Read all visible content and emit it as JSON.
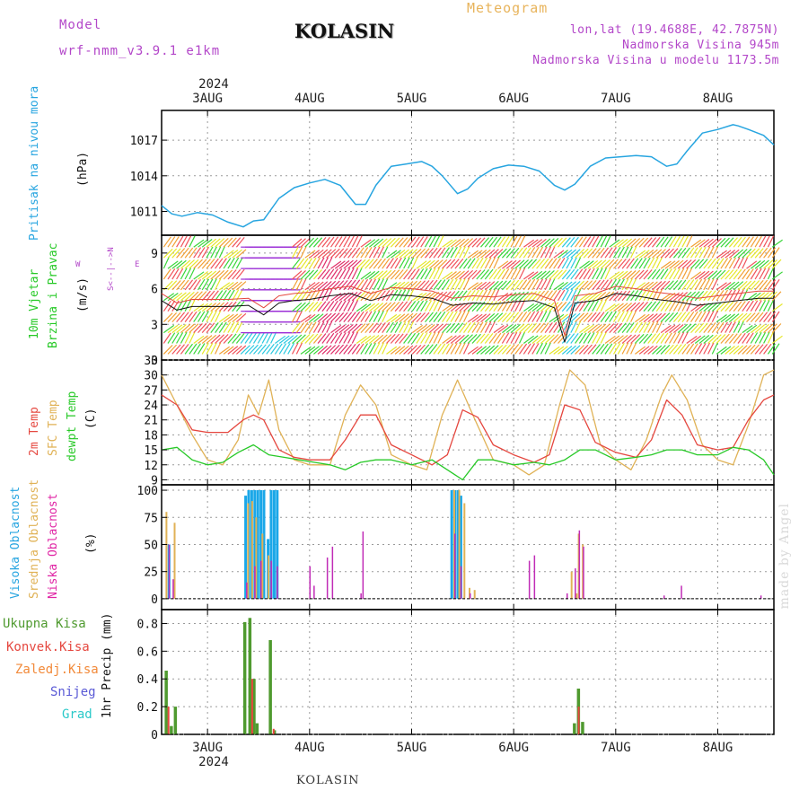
{
  "header": {
    "model_label": "Model",
    "model_name": "wrf-nmm_v3.9.1  e1km",
    "title": "KOLASIN",
    "meteogram_label": "Meteogram",
    "coords": "lon,lat (19.4688E, 42.7875N)",
    "elevation": "Nadmorska Visina 945m",
    "model_elevation": "Nadmorska Visina u modelu 1173.5m"
  },
  "footer": {
    "station": "KOLASIN",
    "watermark": "made by Angel"
  },
  "time_axis": {
    "year": "2024",
    "days": [
      "3AUG",
      "4AUG",
      "5AUG",
      "6AUG",
      "7AUG",
      "8AUG"
    ]
  },
  "panels": {
    "pressure": {
      "label": "Pritisak na nivou mora",
      "unit": "(hPa)",
      "ticks": [
        "1017",
        "1014",
        "1011"
      ]
    },
    "wind": {
      "label1": "10m Vjetar",
      "label2": "Brzina i Pravac",
      "unit": "(m/s)",
      "compass_ns": "S<--|-->N",
      "compass_w": "W",
      "compass_e": "E",
      "ticks": [
        "9",
        "6",
        "3",
        "0"
      ]
    },
    "temp": {
      "label1": "2m Temp",
      "label2": "SFC Temp",
      "label3": "dewpt Temp",
      "unit": "(C)",
      "ticks": [
        "33",
        "30",
        "27",
        "24",
        "21",
        "18",
        "15",
        "12",
        "9"
      ]
    },
    "cloud": {
      "label1": "Visoka Oblacnost",
      "label2": "Srednja Oblacnost",
      "label3": "Niska Oblacnost",
      "unit": "(%)",
      "ticks": [
        "100",
        "75",
        "50",
        "25",
        "0"
      ]
    },
    "precip": {
      "legend": [
        "Ukupna Kisa",
        "Konvek.Kisa",
        "Zaledj.Kisa",
        "Snijeg",
        "Grad"
      ],
      "ylabel": "1hr Precip (mm)",
      "ticks": [
        "0.8",
        "0.6",
        "0.4",
        "0.2",
        "0"
      ]
    }
  },
  "chart_data": {
    "type": "line",
    "x_unit": "day (3 Aug 2024 = day 3)",
    "x_range": [
      2.55,
      8.55
    ],
    "colors": {
      "pressure": "#27a5e0",
      "t2m": "#e5473f",
      "sfc": "#e0b256",
      "dewpt": "#27c927",
      "high_cloud": "#1aa7e8",
      "mid_cloud": "#e0b256",
      "low_cloud": "#c02bb6",
      "total_rain": "#4f9a2f",
      "conv_rain": "#e5473f",
      "freezing_rain": "#f28a3a",
      "snow": "#5a5ad6",
      "hail": "#2bc9c9",
      "label_blue": "#27a5e0",
      "label_green": "#27c927",
      "label_red": "#e5473f",
      "label_orange": "#e0b256",
      "label_magenta": "#e026a5",
      "label_purple": "#b347c9"
    },
    "pressure_hpa": {
      "ylim": [
        1009,
        1019.5
      ],
      "x": [
        2.55,
        2.65,
        2.75,
        2.9,
        3.05,
        3.2,
        3.35,
        3.45,
        3.55,
        3.7,
        3.85,
        4.0,
        4.15,
        4.3,
        4.45,
        4.55,
        4.65,
        4.8,
        4.95,
        5.1,
        5.2,
        5.3,
        5.45,
        5.55,
        5.65,
        5.8,
        5.95,
        6.1,
        6.25,
        6.4,
        6.5,
        6.6,
        6.75,
        6.9,
        7.05,
        7.2,
        7.35,
        7.5,
        7.6,
        7.7,
        7.85,
        8.0,
        8.15,
        8.2,
        8.3,
        8.45,
        8.55
      ],
      "y": [
        1011.5,
        1010.8,
        1010.6,
        1010.9,
        1010.7,
        1010.1,
        1009.7,
        1010.2,
        1010.3,
        1012.1,
        1013.0,
        1013.4,
        1013.7,
        1013.2,
        1011.6,
        1011.6,
        1013.2,
        1014.8,
        1015.0,
        1015.2,
        1014.8,
        1014.0,
        1012.5,
        1012.9,
        1013.8,
        1014.6,
        1014.9,
        1014.8,
        1014.4,
        1013.2,
        1012.8,
        1013.3,
        1014.8,
        1015.5,
        1015.6,
        1015.7,
        1015.6,
        1014.8,
        1015.0,
        1016.1,
        1017.6,
        1017.9,
        1018.3,
        1018.2,
        1017.9,
        1017.4,
        1016.6
      ]
    },
    "wind_speed_ms": {
      "ylim": [
        0,
        10.5
      ],
      "x": [
        2.55,
        2.7,
        2.85,
        3.0,
        3.2,
        3.4,
        3.55,
        3.7,
        3.85,
        4.0,
        4.2,
        4.4,
        4.6,
        4.8,
        5.0,
        5.2,
        5.4,
        5.6,
        5.8,
        6.0,
        6.2,
        6.4,
        6.5,
        6.6,
        6.8,
        7.0,
        7.2,
        7.4,
        7.6,
        7.8,
        8.0,
        8.2,
        8.4,
        8.55
      ],
      "y": [
        5.0,
        4.2,
        4.5,
        4.5,
        4.5,
        4.6,
        3.8,
        4.8,
        5.0,
        5.1,
        5.4,
        5.6,
        5.0,
        5.5,
        5.4,
        5.2,
        4.6,
        4.8,
        4.7,
        4.9,
        5.0,
        4.4,
        1.5,
        4.8,
        5.0,
        5.6,
        5.4,
        5.1,
        4.9,
        4.6,
        4.8,
        5.0,
        5.2,
        5.2
      ]
    },
    "temp_2m_c": {
      "ylim": [
        8,
        33
      ],
      "x": [
        2.55,
        2.7,
        2.85,
        3.0,
        3.2,
        3.35,
        3.45,
        3.55,
        3.7,
        3.85,
        4.0,
        4.2,
        4.35,
        4.5,
        4.65,
        4.8,
        5.0,
        5.2,
        5.35,
        5.5,
        5.65,
        5.8,
        6.0,
        6.2,
        6.35,
        6.5,
        6.65,
        6.8,
        7.0,
        7.2,
        7.35,
        7.5,
        7.65,
        7.8,
        8.0,
        8.15,
        8.3,
        8.45,
        8.55
      ],
      "y": [
        26,
        24,
        19,
        18.5,
        18.5,
        21,
        22,
        21,
        15,
        13.5,
        13,
        13,
        17,
        22,
        22,
        16,
        14,
        12,
        14,
        23,
        21.5,
        16,
        14,
        12.5,
        14,
        24,
        23,
        16.5,
        14.5,
        13.5,
        17,
        25,
        22,
        16,
        15,
        15.5,
        21,
        25,
        26
      ]
    },
    "sfc_temp_c": {
      "x": [
        2.55,
        2.7,
        2.85,
        3.0,
        3.15,
        3.3,
        3.4,
        3.5,
        3.6,
        3.7,
        3.85,
        4.0,
        4.2,
        4.35,
        4.5,
        4.65,
        4.8,
        5.0,
        5.15,
        5.3,
        5.45,
        5.6,
        5.8,
        6.0,
        6.15,
        6.3,
        6.45,
        6.55,
        6.7,
        6.85,
        7.0,
        7.15,
        7.3,
        7.45,
        7.55,
        7.7,
        7.85,
        8.0,
        8.15,
        8.3,
        8.45,
        8.55
      ],
      "y": [
        30,
        24,
        18,
        13,
        12,
        17,
        26,
        22,
        29,
        19,
        13,
        12,
        12,
        22,
        28,
        24,
        14,
        12,
        11,
        22,
        29,
        22,
        13,
        12,
        10,
        12,
        24,
        31,
        28,
        16,
        13,
        11,
        17,
        26,
        30,
        25,
        16,
        13,
        12,
        20,
        30,
        31
      ]
    },
    "dewpt_c": {
      "x": [
        2.55,
        2.7,
        2.85,
        3.0,
        3.15,
        3.3,
        3.45,
        3.6,
        3.75,
        3.9,
        4.05,
        4.2,
        4.35,
        4.5,
        4.65,
        4.8,
        5.0,
        5.2,
        5.35,
        5.5,
        5.65,
        5.8,
        6.0,
        6.2,
        6.35,
        6.5,
        6.65,
        6.8,
        7.0,
        7.2,
        7.35,
        7.5,
        7.65,
        7.8,
        8.0,
        8.15,
        8.3,
        8.45,
        8.55
      ],
      "y": [
        15,
        15.5,
        13,
        12,
        12.5,
        14.5,
        16,
        14,
        13.5,
        13,
        12.5,
        12,
        11,
        12.5,
        13,
        13,
        12,
        13,
        11,
        9,
        13,
        13,
        12,
        12.5,
        12,
        13,
        15,
        15,
        13,
        13.5,
        14,
        15,
        15,
        14,
        14,
        15.5,
        15,
        13,
        10
      ]
    },
    "cloud_pct": {
      "ylim": [
        0,
        100
      ],
      "high": [
        [
          2.61,
          50
        ],
        [
          3.36,
          95
        ],
        [
          3.39,
          100
        ],
        [
          3.42,
          100
        ],
        [
          3.45,
          100
        ],
        [
          3.48,
          100
        ],
        [
          3.51,
          100
        ],
        [
          3.54,
          100
        ],
        [
          3.58,
          55
        ],
        [
          3.61,
          100
        ],
        [
          3.64,
          100
        ],
        [
          3.67,
          100
        ],
        [
          5.38,
          100
        ],
        [
          5.41,
          100
        ],
        [
          5.44,
          100
        ],
        [
          5.47,
          95
        ]
      ],
      "mid": [
        [
          2.58,
          80
        ],
        [
          2.66,
          70
        ],
        [
          3.38,
          88
        ],
        [
          3.42,
          90
        ],
        [
          3.46,
          75
        ],
        [
          3.52,
          60
        ],
        [
          3.58,
          40
        ],
        [
          5.4,
          100
        ],
        [
          5.45,
          100
        ],
        [
          5.5,
          88
        ],
        [
          5.55,
          10
        ],
        [
          5.6,
          8
        ],
        [
          6.55,
          25
        ],
        [
          6.62,
          60
        ],
        [
          6.66,
          50
        ],
        [
          6.6,
          5
        ]
      ],
      "low": [
        [
          2.6,
          50
        ],
        [
          2.64,
          18
        ],
        [
          3.36,
          15
        ],
        [
          3.44,
          30
        ],
        [
          3.5,
          35
        ],
        [
          3.6,
          35
        ],
        [
          3.66,
          30
        ],
        [
          3.98,
          30
        ],
        [
          4.02,
          12
        ],
        [
          4.15,
          38
        ],
        [
          4.2,
          48
        ],
        [
          4.5,
          62
        ],
        [
          4.48,
          5
        ],
        [
          5.4,
          60
        ],
        [
          5.46,
          30
        ],
        [
          5.55,
          5
        ],
        [
          6.13,
          35
        ],
        [
          6.18,
          40
        ],
        [
          6.5,
          5
        ],
        [
          6.58,
          28
        ],
        [
          6.62,
          63
        ],
        [
          6.66,
          48
        ],
        [
          7.45,
          3
        ],
        [
          7.62,
          12
        ],
        [
          8.4,
          3
        ]
      ]
    },
    "precip_mm": {
      "ylim": [
        0,
        0.9
      ],
      "total": [
        [
          2.58,
          0.46
        ],
        [
          2.63,
          0.06
        ],
        [
          2.67,
          0.2
        ],
        [
          3.35,
          0.81
        ],
        [
          3.4,
          0.84
        ],
        [
          3.44,
          0.4
        ],
        [
          3.47,
          0.08
        ],
        [
          3.6,
          0.68
        ],
        [
          3.64,
          0.03
        ],
        [
          6.58,
          0.08
        ],
        [
          6.62,
          0.33
        ],
        [
          6.66,
          0.09
        ]
      ],
      "convective": [
        [
          2.6,
          0.2
        ],
        [
          3.42,
          0.4
        ],
        [
          3.63,
          0.04
        ],
        [
          6.62,
          0.2
        ]
      ]
    }
  }
}
